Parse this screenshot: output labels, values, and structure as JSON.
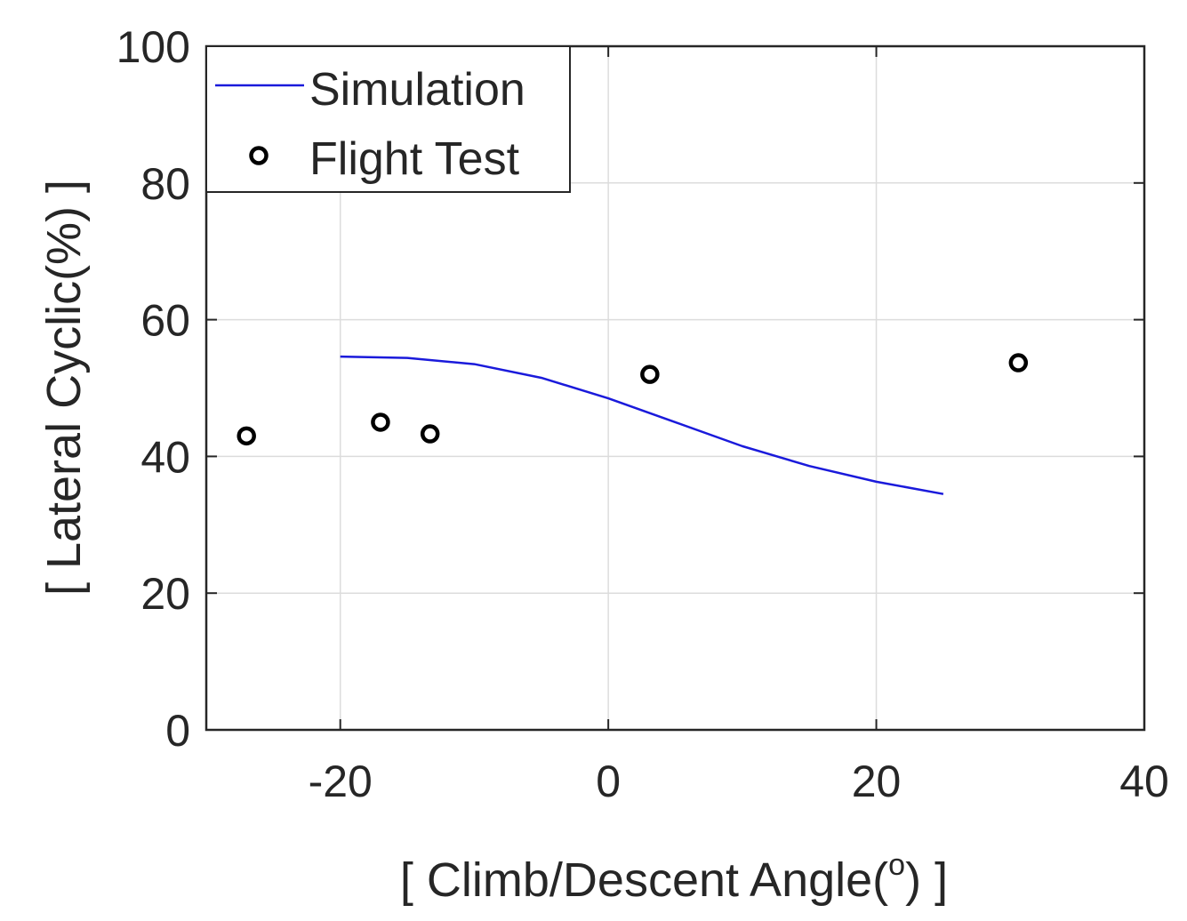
{
  "chart_data": {
    "type": "line",
    "title": "",
    "xlabel": "[ Climb/Descent Angle(",
    "xlabel_superscript": "o",
    "xlabel_suffix": ") ]",
    "ylabel": "[ Lateral Cyclic(%) ]",
    "xlim": [
      -30,
      40
    ],
    "ylim": [
      0,
      100
    ],
    "xticks": [
      -20,
      0,
      20,
      40
    ],
    "yticks": [
      0,
      20,
      40,
      60,
      80,
      100
    ],
    "xtick_labels": [
      "-20",
      "0",
      "20",
      "40"
    ],
    "ytick_labels": [
      "0",
      "20",
      "40",
      "60",
      "80",
      "100"
    ],
    "grid": true,
    "legend_position": "top-left",
    "series": [
      {
        "name": "Simulation",
        "kind": "line",
        "color": "#1a1adb",
        "x": [
          -20,
          -15,
          -10,
          -5,
          0,
          5,
          10,
          15,
          20,
          25
        ],
        "y": [
          54.6,
          54.4,
          53.5,
          51.5,
          48.5,
          45.0,
          41.5,
          38.6,
          36.3,
          34.5
        ]
      },
      {
        "name": "Flight Test",
        "kind": "scatter",
        "color": "#000000",
        "x": [
          -27,
          -17,
          -13.3,
          3.1,
          30.6
        ],
        "y": [
          43.0,
          45.0,
          43.3,
          52.0,
          53.7
        ]
      }
    ]
  }
}
